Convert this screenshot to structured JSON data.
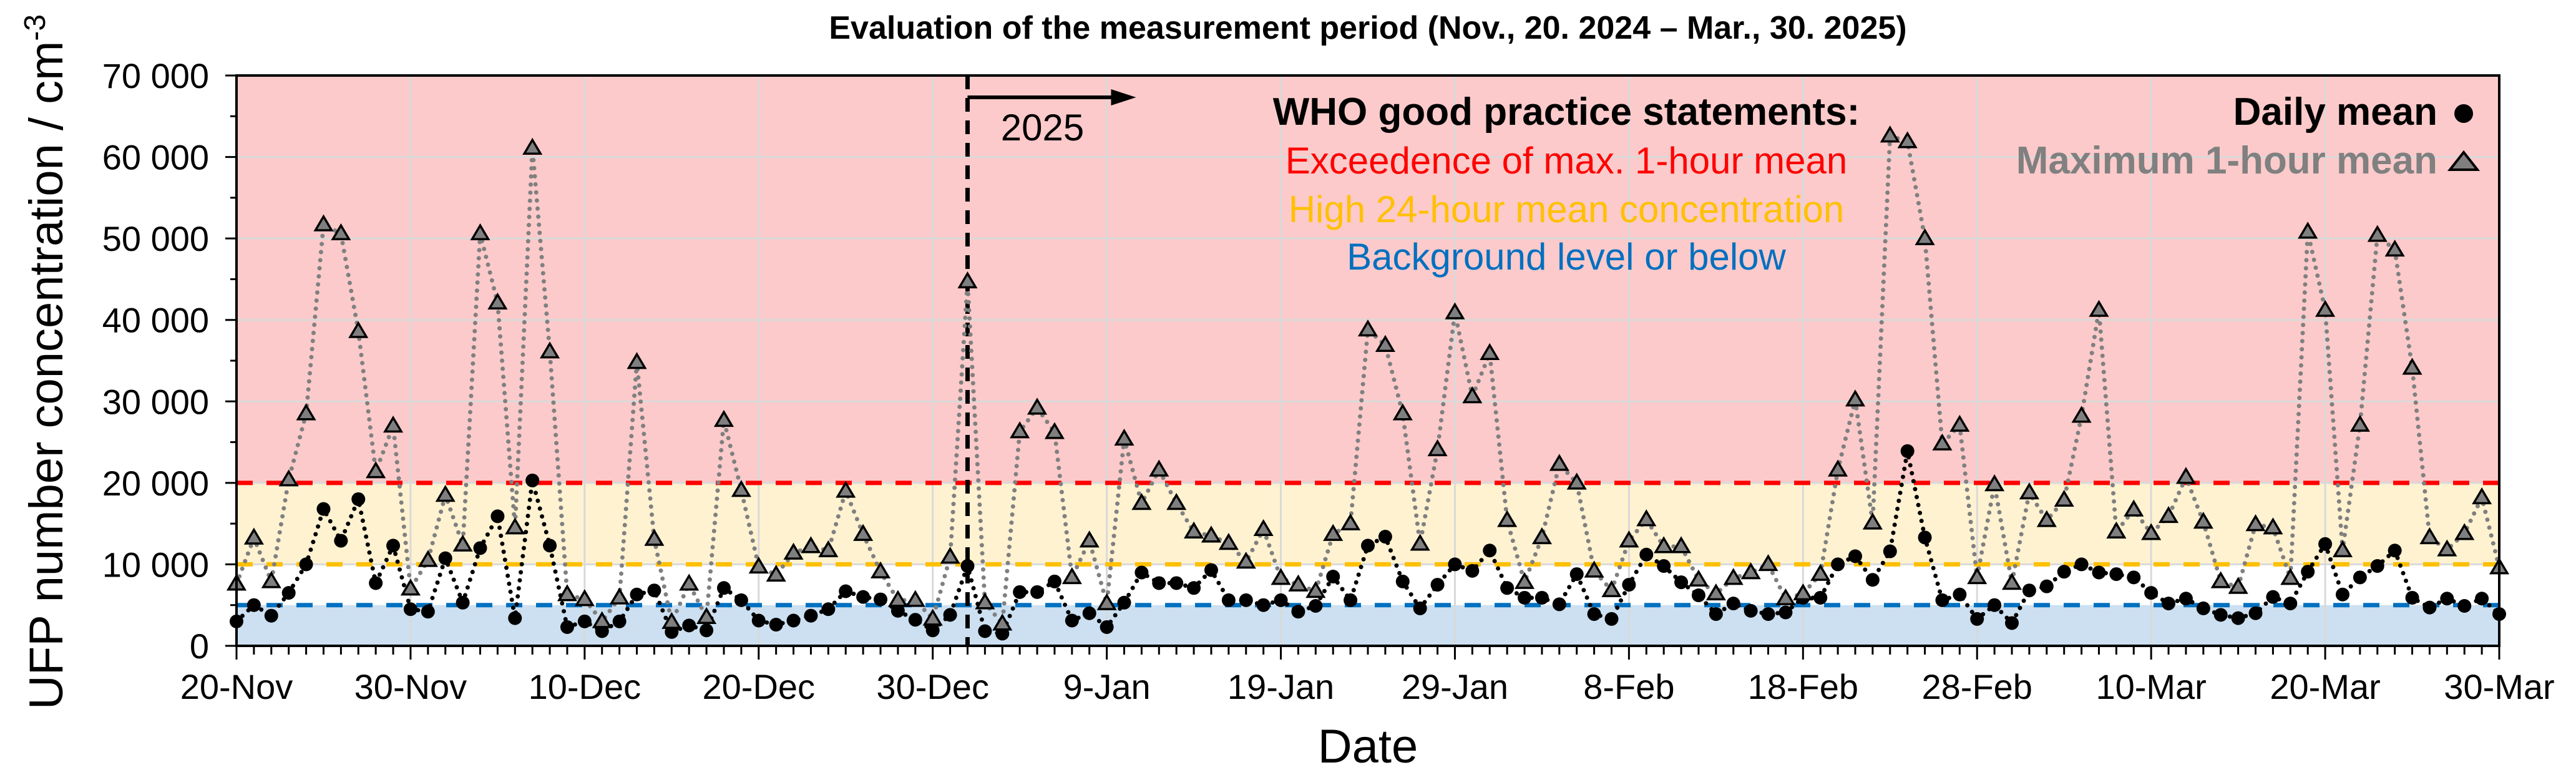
{
  "chart_data": {
    "type": "line",
    "title": "Evaluation of the measurement period (Nov., 20. 2024 – Mar., 30. 2025)",
    "xlabel": "Date",
    "ylabel": "UFP number concentration / cm",
    "ylabel_superscript": "-3",
    "ylim": [
      0,
      70000
    ],
    "yticks": [
      0,
      10000,
      20000,
      30000,
      40000,
      50000,
      60000,
      70000
    ],
    "ytick_labels": [
      "0",
      "10 000",
      "20 000",
      "30 000",
      "40 000",
      "50 000",
      "60 000",
      "70 000"
    ],
    "xlim": [
      "2024-11-20",
      "2025-03-30"
    ],
    "xtick_labels": [
      "20-Nov",
      "30-Nov",
      "10-Dec",
      "20-Dec",
      "30-Dec",
      "9-Jan",
      "19-Jan",
      "29-Jan",
      "8-Feb",
      "18-Feb",
      "28-Feb",
      "10-Mar",
      "20-Mar",
      "30-Mar"
    ],
    "grid": true,
    "year_marker": {
      "date": "2025-01-01",
      "label": "2025"
    },
    "x": [
      "2024-11-20",
      "2024-11-21",
      "2024-11-22",
      "2024-11-23",
      "2024-11-24",
      "2024-11-25",
      "2024-11-26",
      "2024-11-27",
      "2024-11-28",
      "2024-11-29",
      "2024-11-30",
      "2024-12-01",
      "2024-12-02",
      "2024-12-03",
      "2024-12-04",
      "2024-12-05",
      "2024-12-06",
      "2024-12-07",
      "2024-12-08",
      "2024-12-09",
      "2024-12-10",
      "2024-12-11",
      "2024-12-12",
      "2024-12-13",
      "2024-12-14",
      "2024-12-15",
      "2024-12-16",
      "2024-12-17",
      "2024-12-18",
      "2024-12-19",
      "2024-12-20",
      "2024-12-21",
      "2024-12-22",
      "2024-12-23",
      "2024-12-24",
      "2024-12-25",
      "2024-12-26",
      "2024-12-27",
      "2024-12-28",
      "2024-12-29",
      "2024-12-30",
      "2024-12-31",
      "2025-01-01",
      "2025-01-02",
      "2025-01-03",
      "2025-01-04",
      "2025-01-05",
      "2025-01-06",
      "2025-01-07",
      "2025-01-08",
      "2025-01-09",
      "2025-01-10",
      "2025-01-11",
      "2025-01-12",
      "2025-01-13",
      "2025-01-14",
      "2025-01-15",
      "2025-01-16",
      "2025-01-17",
      "2025-01-18",
      "2025-01-19",
      "2025-01-20",
      "2025-01-21",
      "2025-01-22",
      "2025-01-23",
      "2025-01-24",
      "2025-01-25",
      "2025-01-26",
      "2025-01-27",
      "2025-01-28",
      "2025-01-29",
      "2025-01-30",
      "2025-01-31",
      "2025-02-01",
      "2025-02-02",
      "2025-02-03",
      "2025-02-04",
      "2025-02-05",
      "2025-02-06",
      "2025-02-07",
      "2025-02-08",
      "2025-02-09",
      "2025-02-10",
      "2025-02-11",
      "2025-02-12",
      "2025-02-13",
      "2025-02-14",
      "2025-02-15",
      "2025-02-16",
      "2025-02-17",
      "2025-02-18",
      "2025-02-19",
      "2025-02-20",
      "2025-02-21",
      "2025-02-22",
      "2025-02-23",
      "2025-02-24",
      "2025-02-25",
      "2025-02-26",
      "2025-02-27",
      "2025-02-28",
      "2025-03-01",
      "2025-03-02",
      "2025-03-03",
      "2025-03-04",
      "2025-03-05",
      "2025-03-06",
      "2025-03-07",
      "2025-03-08",
      "2025-03-09",
      "2025-03-10",
      "2025-03-11",
      "2025-03-12",
      "2025-03-13",
      "2025-03-14",
      "2025-03-15",
      "2025-03-16",
      "2025-03-17",
      "2025-03-18",
      "2025-03-19",
      "2025-03-20",
      "2025-03-21",
      "2025-03-22",
      "2025-03-23",
      "2025-03-24",
      "2025-03-25",
      "2025-03-26",
      "2025-03-27",
      "2025-03-28",
      "2025-03-29",
      "2025-03-30"
    ],
    "series": [
      {
        "name": "Daily mean",
        "marker": "circle",
        "color": "#000000",
        "values": [
          3000,
          5000,
          3700,
          6500,
          10000,
          16800,
          12900,
          18000,
          7700,
          12300,
          4500,
          4200,
          10750,
          5300,
          12000,
          15900,
          3400,
          20300,
          12300,
          2300,
          3000,
          1800,
          3000,
          6300,
          6800,
          1700,
          2500,
          1900,
          7100,
          5600,
          3100,
          2600,
          3100,
          3700,
          4500,
          6700,
          6000,
          5700,
          4300,
          3200,
          1900,
          3800,
          9800,
          1800,
          1500,
          6600,
          6600,
          7900,
          3100,
          4000,
          2300,
          5300,
          9000,
          7700,
          7700,
          7100,
          9300,
          5600,
          5600,
          5000,
          5600,
          4200,
          4900,
          8500,
          5600,
          12300,
          13400,
          7900,
          4600,
          7500,
          10000,
          9200,
          11700,
          7100,
          5900,
          5900,
          5100,
          8800,
          3900,
          3300,
          7500,
          11200,
          9800,
          7800,
          6200,
          3900,
          5200,
          4300,
          3900,
          4100,
          5900,
          5900,
          10000,
          11000,
          8100,
          11600,
          23900,
          13300,
          5600,
          6300,
          3300,
          5000,
          2800,
          6800,
          7300,
          9100,
          10000,
          9000,
          8800,
          8400,
          6500,
          5200,
          5800,
          4600,
          3800,
          3400,
          4000,
          6000,
          5200,
          9100,
          12500,
          6300,
          8400,
          9800,
          11700,
          5900,
          4700,
          5800,
          4900,
          5800,
          3900
        ]
      },
      {
        "name": "Maximum 1-hour mean",
        "marker": "triangle",
        "color": "#808080",
        "values": [
          7600,
          13250,
          7900,
          20400,
          28500,
          51700,
          50600,
          38600,
          21400,
          27000,
          7000,
          10500,
          18500,
          12400,
          50600,
          42100,
          14500,
          61100,
          36100,
          6300,
          5700,
          3000,
          5900,
          34800,
          13100,
          2900,
          7600,
          3500,
          27700,
          19100,
          9700,
          8700,
          11400,
          12200,
          11700,
          19000,
          13700,
          9100,
          5600,
          5600,
          3300,
          10900,
          44700,
          5300,
          2700,
          26300,
          29200,
          26200,
          8400,
          12900,
          5200,
          25400,
          17500,
          21600,
          17500,
          14000,
          13500,
          12600,
          10300,
          14300,
          8300,
          7500,
          6700,
          13700,
          15000,
          38800,
          36900,
          28500,
          12500,
          24100,
          40900,
          30600,
          35900,
          15400,
          7800,
          13300,
          22300,
          20000,
          9200,
          6800,
          12900,
          15500,
          12200,
          12200,
          8100,
          6400,
          8300,
          9000,
          10000,
          5800,
          6400,
          8800,
          21600,
          30200,
          15100,
          62600,
          61900,
          50000,
          24800,
          27100,
          8400,
          19800,
          7700,
          18800,
          15400,
          17900,
          28200,
          41200,
          14000,
          16700,
          13800,
          15900,
          20700,
          15200,
          7900,
          7200,
          14900,
          14500,
          8300,
          50800,
          41200,
          11700,
          27100,
          50400,
          48600,
          34100,
          13300,
          11800,
          13800,
          18200,
          9600
        ]
      }
    ],
    "thresholds": [
      {
        "value": 20000,
        "label": "Exceedence of max. 1-hour mean",
        "color": "#FF0000",
        "band_color": "#FCCACA"
      },
      {
        "value": 10000,
        "label": "High 24-hour mean concentration",
        "color": "#FFC000",
        "band_color": "#FFF2D1"
      },
      {
        "value": 5000,
        "label": "Background level or below",
        "color": "#0070C0",
        "band_color": "#CCE0F1"
      }
    ],
    "who_heading": "WHO good practice statements:",
    "legend_placement": "top-right"
  }
}
